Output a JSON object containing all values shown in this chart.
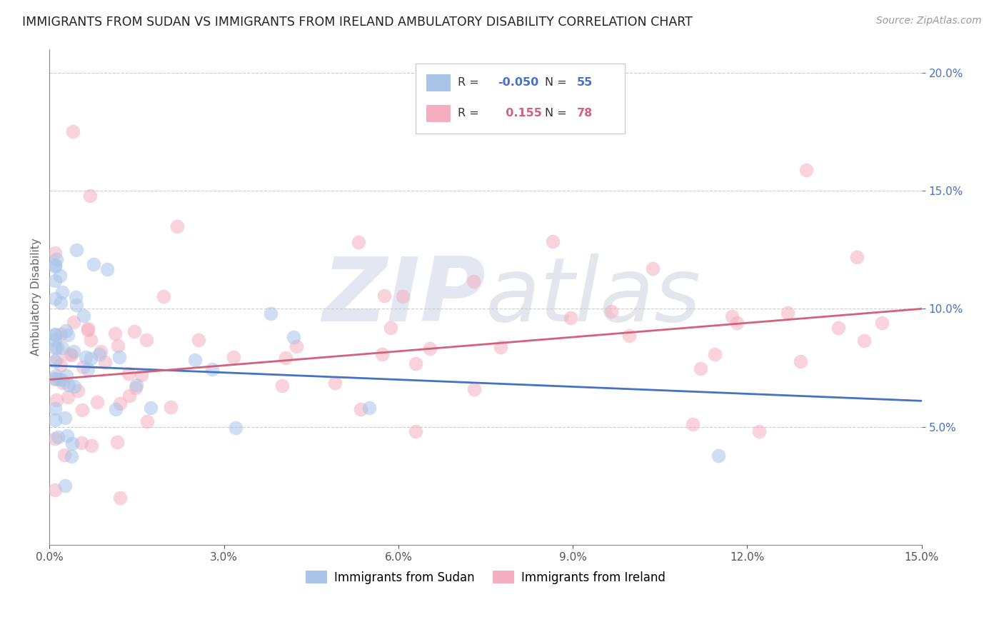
{
  "title": "IMMIGRANTS FROM SUDAN VS IMMIGRANTS FROM IRELAND AMBULATORY DISABILITY CORRELATION CHART",
  "source": "Source: ZipAtlas.com",
  "ylabel": "Ambulatory Disability",
  "xlim": [
    0.0,
    0.15
  ],
  "ylim": [
    0.0,
    0.21
  ],
  "xticks": [
    0.0,
    0.03,
    0.06,
    0.09,
    0.12,
    0.15
  ],
  "xtick_labels": [
    "0.0%",
    "3.0%",
    "6.0%",
    "9.0%",
    "12.0%",
    "15.0%"
  ],
  "yticks": [
    0.05,
    0.1,
    0.15,
    0.2
  ],
  "ytick_labels": [
    "5.0%",
    "10.0%",
    "15.0%",
    "20.0%"
  ],
  "sudan_R": -0.05,
  "sudan_N": 55,
  "ireland_R": 0.155,
  "ireland_N": 78,
  "sudan_color": "#a8c4e8",
  "ireland_color": "#f5afc0",
  "sudan_line_color": "#4472c4",
  "ireland_line_color": "#d4607a",
  "background_color": "#ffffff",
  "grid_color": "#cccccc",
  "ytick_color": "#4472c4",
  "xtick_color": "#555555",
  "sudan_line_start_y": 0.076,
  "sudan_line_end_y": 0.061,
  "ireland_line_start_y": 0.07,
  "ireland_line_end_y": 0.1
}
